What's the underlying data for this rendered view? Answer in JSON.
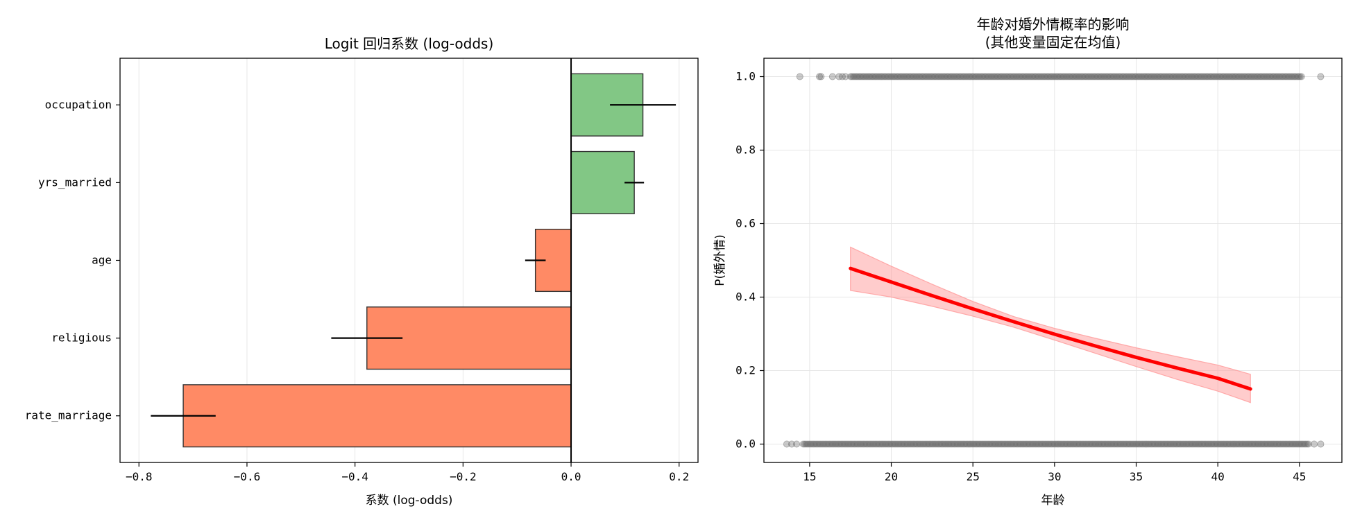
{
  "chart_data": [
    {
      "type": "bar",
      "orientation": "horizontal",
      "title": "Logit 回归系数 (log-odds)",
      "xlabel": "系数 (log-odds)",
      "ylabel": "",
      "xlim": [
        -0.835,
        0.235
      ],
      "xticks": [
        -0.8,
        -0.6,
        -0.4,
        -0.2,
        0.0,
        0.2
      ],
      "xtick_labels": [
        "−0.8",
        "−0.6",
        "−0.4",
        "−0.2",
        "0.0",
        "0.2"
      ],
      "categories": [
        "rate_marriage",
        "religious",
        "age",
        "yrs_married",
        "occupation"
      ],
      "values": [
        -0.718,
        -0.378,
        -0.066,
        0.117,
        0.133
      ],
      "error": [
        0.06,
        0.066,
        0.019,
        0.018,
        0.061
      ],
      "positive_color": "#82c785",
      "negative_color": "#ff8a65",
      "grid": true
    },
    {
      "type": "line",
      "title": "年龄对婚外情概率的影响",
      "subtitle": "(其他变量固定在均值)",
      "xlabel": "年龄",
      "ylabel": "P(婚外情)",
      "xlim": [
        12.2,
        47.6
      ],
      "ylim": [
        -0.05,
        1.05
      ],
      "xticks": [
        15,
        20,
        25,
        30,
        35,
        40,
        45
      ],
      "yticks": [
        0.0,
        0.2,
        0.4,
        0.6,
        0.8,
        1.0
      ],
      "ytick_labels": [
        "0.0",
        "0.2",
        "0.4",
        "0.6",
        "0.8",
        "1.0"
      ],
      "curve": {
        "x": [
          17.5,
          20,
          22.5,
          25,
          27.5,
          30,
          32.5,
          35,
          37.5,
          40,
          42
        ],
        "y": [
          0.478,
          0.441,
          0.404,
          0.368,
          0.333,
          0.299,
          0.267,
          0.236,
          0.207,
          0.179,
          0.15
        ],
        "ci_low": [
          0.418,
          0.4,
          0.375,
          0.348,
          0.318,
          0.283,
          0.247,
          0.211,
          0.176,
          0.144,
          0.113
        ],
        "ci_high": [
          0.536,
          0.484,
          0.435,
          0.388,
          0.347,
          0.315,
          0.288,
          0.262,
          0.238,
          0.215,
          0.19
        ],
        "color": "#ff0000",
        "band_color": "#ff9999"
      },
      "scatter": {
        "y1_x_range": [
          17.5,
          45.2
        ],
        "y1_isolated_x": [
          14.4,
          15.6,
          15.7,
          16.4,
          16.8,
          17.0,
          17.2,
          46.3
        ],
        "y0_x_range": [
          14.6,
          45.6
        ],
        "y0_isolated_x": [
          13.6,
          13.9,
          14.2,
          45.9,
          46.3
        ],
        "color": "#666666"
      },
      "grid": true
    }
  ]
}
